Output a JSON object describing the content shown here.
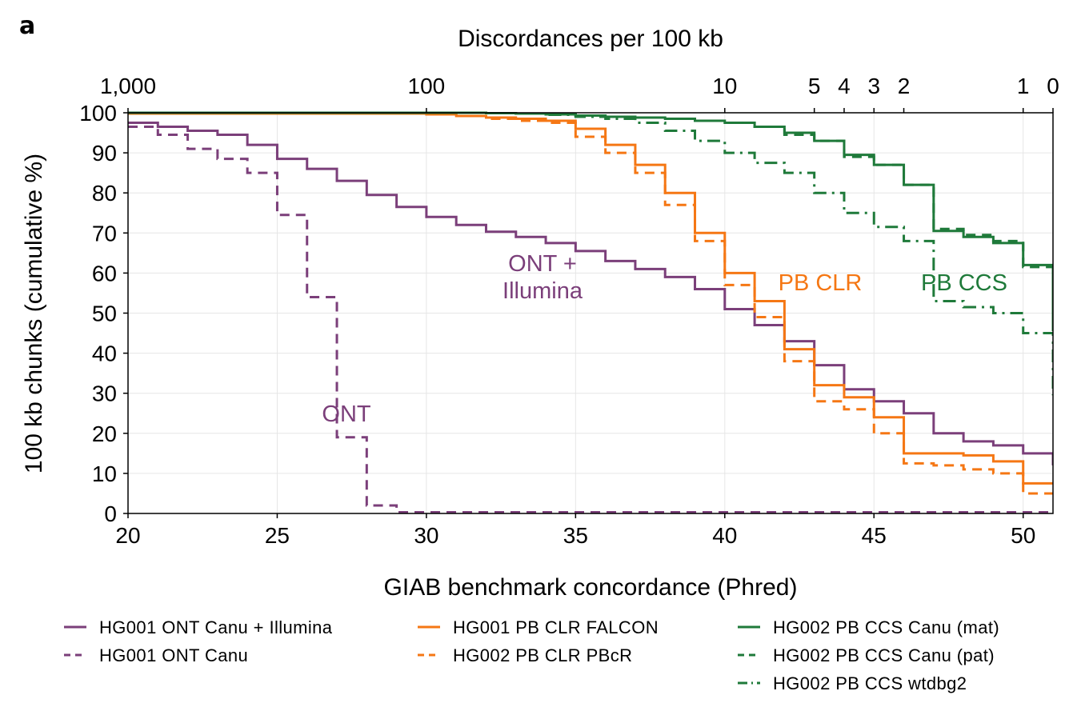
{
  "panel_label": "a",
  "colors": {
    "purple": "#7b3f7a",
    "orange": "#f57714",
    "green": "#1f7a3a",
    "grid": "#e6e6e6"
  },
  "chart_data": {
    "type": "line",
    "step": true,
    "xlabel": "GIAB benchmark concordance (Phred)",
    "ylabel": "100 kb chunks (cumulative %)",
    "top_axis_label": "Discordances per 100 kb",
    "xlim": [
      20,
      51
    ],
    "ylim": [
      0,
      100
    ],
    "x_ticks": [
      20,
      25,
      30,
      35,
      40,
      45,
      50
    ],
    "y_ticks": [
      0,
      10,
      20,
      30,
      40,
      50,
      60,
      70,
      80,
      90,
      100
    ],
    "top_ticks": [
      {
        "label": "1,000",
        "phred": 20
      },
      {
        "label": "100",
        "phred": 30
      },
      {
        "label": "10",
        "phred": 40
      },
      {
        "label": "5",
        "phred": 43
      },
      {
        "label": "4",
        "phred": 44
      },
      {
        "label": "3",
        "phred": 45
      },
      {
        "label": "2",
        "phred": 46
      },
      {
        "label": "1",
        "phred": 50
      },
      {
        "label": "0",
        "phred": 51
      }
    ],
    "grid": true,
    "series": [
      {
        "name": "HG001 ONT Canu + Illumina",
        "color": "purple",
        "dash": "solid",
        "x": [
          20,
          21,
          22,
          23,
          24,
          25,
          26,
          27,
          28,
          29,
          30,
          31,
          32,
          33,
          34,
          35,
          36,
          37,
          38,
          39,
          40,
          41,
          42,
          43,
          44,
          45,
          46,
          47,
          48,
          49,
          50,
          51
        ],
        "y": [
          97.5,
          96.5,
          95.5,
          94.5,
          92,
          88.5,
          86,
          83,
          79.5,
          76.5,
          74,
          72,
          70.3,
          69,
          67.5,
          65.5,
          63,
          61,
          59,
          56,
          51,
          47,
          43,
          37,
          31,
          28,
          25,
          20,
          18,
          17,
          15,
          12
        ]
      },
      {
        "name": "HG001 ONT Canu",
        "color": "purple",
        "dash": "dashed",
        "x": [
          20,
          21,
          22,
          23,
          24,
          25,
          26,
          27,
          28,
          29,
          30,
          31,
          32,
          33,
          34,
          35,
          36,
          37,
          38,
          39,
          40,
          41,
          42,
          43,
          44,
          45,
          46,
          47,
          48,
          49,
          50,
          51
        ],
        "y": [
          96.5,
          94.5,
          91,
          88.5,
          85,
          74.5,
          54,
          19,
          2,
          0.3,
          0.3,
          0.3,
          0.3,
          0.3,
          0.3,
          0.3,
          0.3,
          0.3,
          0.3,
          0.3,
          0.3,
          0.3,
          0.3,
          0.3,
          0.3,
          0.3,
          0.3,
          0.3,
          0.3,
          0.3,
          0.3,
          0.3
        ]
      },
      {
        "name": "HG001 PB CLR FALCON",
        "color": "orange",
        "dash": "solid",
        "x": [
          20,
          30,
          31,
          32,
          33,
          34,
          35,
          36,
          37,
          38,
          39,
          40,
          41,
          42,
          43,
          44,
          45,
          46,
          47,
          48,
          49,
          50,
          51
        ],
        "y": [
          99.8,
          99.6,
          99.2,
          98.8,
          98.5,
          98,
          96,
          92,
          87,
          80,
          70,
          60,
          53,
          41,
          32,
          29,
          24,
          15,
          15,
          14.5,
          13,
          7.5,
          7.5
        ]
      },
      {
        "name": "HG002 PB CLR PBcR",
        "color": "orange",
        "dash": "dashed",
        "x": [
          20,
          30,
          31,
          32,
          33,
          34,
          35,
          36,
          37,
          38,
          39,
          40,
          41,
          42,
          43,
          44,
          45,
          46,
          47,
          48,
          49,
          50,
          51
        ],
        "y": [
          99.8,
          99.6,
          99.2,
          98.5,
          98,
          97.5,
          94,
          90,
          85,
          77,
          68,
          57,
          49,
          38,
          28,
          26,
          20,
          12.5,
          12,
          11,
          10,
          5,
          5
        ]
      },
      {
        "name": "HG002 PB CCS Canu (mat)",
        "color": "green",
        "dash": "solid",
        "x": [
          20,
          32,
          33,
          34,
          35,
          36,
          37,
          38,
          39,
          40,
          41,
          42,
          43,
          44,
          45,
          46,
          47,
          48,
          49,
          50,
          51
        ],
        "y": [
          100,
          99.9,
          99.8,
          99.6,
          99.3,
          99,
          98.8,
          98.5,
          98,
          97.5,
          96.5,
          95,
          93,
          89.5,
          87,
          82,
          70.5,
          69,
          67.5,
          62,
          45.5
        ]
      },
      {
        "name": "HG002 PB CCS Canu (pat)",
        "color": "green",
        "dash": "dashed",
        "x": [
          20,
          32,
          33,
          34,
          35,
          36,
          37,
          38,
          39,
          40,
          41,
          42,
          43,
          44,
          45,
          46,
          47,
          48,
          49,
          50,
          51
        ],
        "y": [
          100,
          99.9,
          99.8,
          99.6,
          99.3,
          99,
          98.8,
          98.5,
          98,
          97.5,
          96.5,
          94.5,
          93,
          89,
          87,
          82,
          71,
          69.5,
          68,
          61.5,
          46.5
        ]
      },
      {
        "name": "HG002 PB CCS wtdbg2",
        "color": "green",
        "dash": "dashdot",
        "x": [
          20,
          32,
          33,
          34,
          35,
          36,
          37,
          38,
          39,
          40,
          41,
          42,
          43,
          44,
          45,
          46,
          47,
          48,
          49,
          50,
          51
        ],
        "y": [
          100,
          99.9,
          99.8,
          99.5,
          99,
          98.5,
          97.5,
          95.5,
          93,
          90,
          87.5,
          85,
          80,
          75,
          71.5,
          68,
          53,
          51.5,
          50,
          45,
          29.5
        ]
      }
    ],
    "annotations": [
      {
        "lines": [
          "ONT +",
          "Illumina"
        ],
        "color": "purple"
      },
      {
        "lines": [
          "ONT"
        ],
        "color": "purple"
      },
      {
        "lines": [
          "PB CLR"
        ],
        "color": "orange"
      },
      {
        "lines": [
          "PB CCS"
        ],
        "color": "green"
      }
    ]
  }
}
